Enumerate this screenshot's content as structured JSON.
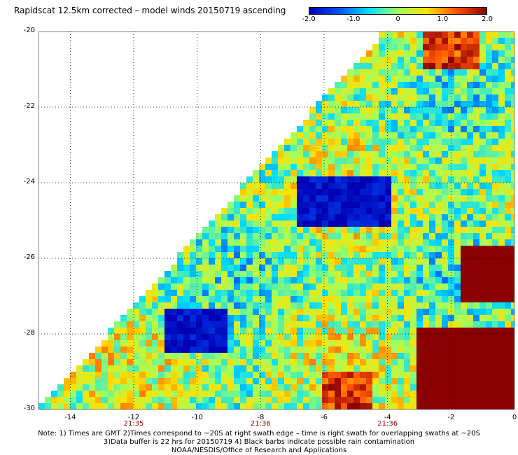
{
  "title": "Rapidscat 12.5km corrected – model winds 20150719 ascending",
  "colorbar": {
    "ticks": [
      "-2.0",
      "-1.0",
      "0",
      "1.0",
      "2.0"
    ],
    "tick_values": [
      -2.0,
      -1.0,
      0,
      1.0,
      2.0
    ],
    "range": [
      -2.0,
      2.0
    ],
    "colors": [
      "#0000b4",
      "#0050ff",
      "#00dcff",
      "#a0ff60",
      "#ffe000",
      "#ff5000",
      "#8b0000"
    ]
  },
  "chart_data": {
    "type": "heatmap",
    "x_range": [
      -15,
      0
    ],
    "y_range": [
      -30,
      -20
    ],
    "x_ticks": [
      "-14",
      "-12",
      "-10",
      "-8",
      "-6",
      "-4",
      "-2",
      "0"
    ],
    "x_tick_values": [
      -14,
      -12,
      -10,
      -8,
      -6,
      -4,
      -2,
      0
    ],
    "y_ticks": [
      "-20",
      "-22",
      "-24",
      "-26",
      "-28",
      "-30"
    ],
    "y_tick_values": [
      -20,
      -22,
      -24,
      -26,
      -28,
      -30
    ],
    "grid": true,
    "time_labels": [
      {
        "text": "21:35",
        "lon": -12
      },
      {
        "text": "21:36",
        "lon": -8
      },
      {
        "text": "21:36",
        "lon": -4
      }
    ],
    "features": [
      {
        "kind": "strong-positive",
        "lon": [
          -1.6,
          0
        ],
        "lat": [
          -27.1,
          -25.6
        ]
      },
      {
        "kind": "strong-positive",
        "lon": [
          -3,
          0
        ],
        "lat": [
          -30,
          -27.8
        ]
      },
      {
        "kind": "positive",
        "lon": [
          -2.8,
          -1.2
        ],
        "lat": [
          -21.0,
          -20.0
        ]
      },
      {
        "kind": "negative",
        "lon": [
          -6.9,
          -3.9
        ],
        "lat": [
          -25.2,
          -23.9
        ]
      },
      {
        "kind": "negative",
        "lon": [
          -11.0,
          -9.0
        ],
        "lat": [
          -28.5,
          -27.3
        ]
      },
      {
        "kind": "positive",
        "lon": [
          -6.0,
          -4.5
        ],
        "lat": [
          -30,
          -29.0
        ]
      }
    ]
  },
  "notes": [
    "Note: 1) Times are GMT 2)Times correspond to ~20S at right swath edge – time is right swath for overlapping swaths at ~20S",
    "3)Data buffer is 22 hrs for 20150719 4) Black barbs indicate possible rain contamination",
    "NOAA/NESDIS/Office of Research and Applications"
  ]
}
